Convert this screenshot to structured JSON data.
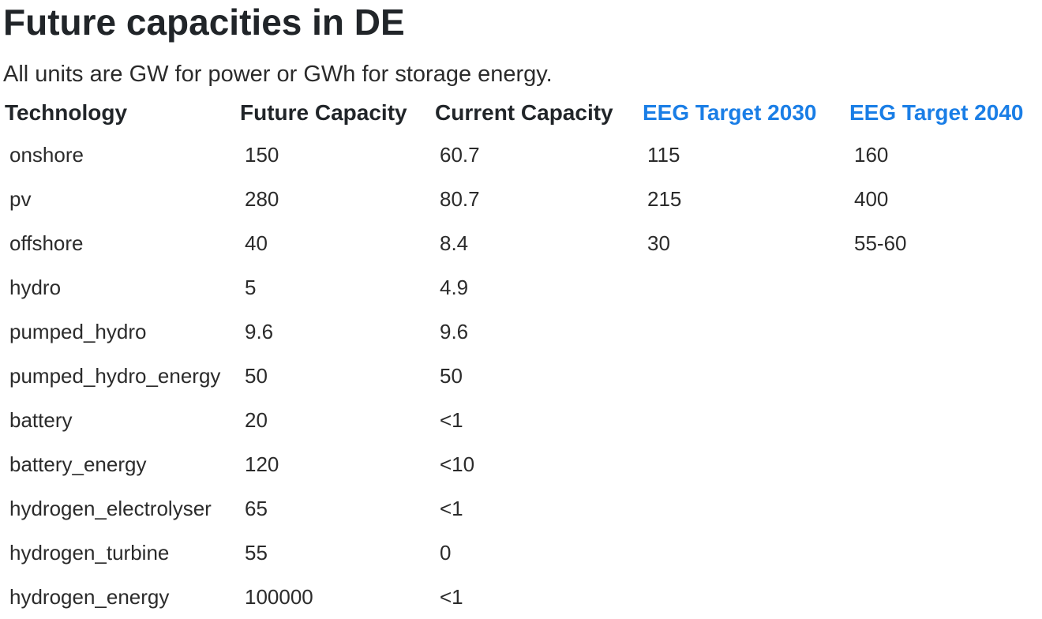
{
  "page": {
    "title": "Future capacities in DE",
    "subtitle": "All units are GW for power or GWh for storage energy."
  },
  "table": {
    "headers": [
      "Technology",
      "Future Capacity",
      "Current Capacity",
      "EEG Target 2030",
      "EEG Target 2040"
    ],
    "header_link_color": "#1a7ee6",
    "rows": [
      [
        "onshore",
        "150",
        "60.7",
        "115",
        "160"
      ],
      [
        "pv",
        "280",
        "80.7",
        "215",
        "400"
      ],
      [
        "offshore",
        "40",
        "8.4",
        "30",
        "55-60"
      ],
      [
        "hydro",
        "5",
        "4.9",
        "",
        ""
      ],
      [
        "pumped_hydro",
        "9.6",
        "9.6",
        "",
        ""
      ],
      [
        "pumped_hydro_energy",
        "50",
        "50",
        "",
        ""
      ],
      [
        "battery",
        "20",
        "<1",
        "",
        ""
      ],
      [
        "battery_energy",
        "120",
        "<10",
        "",
        ""
      ],
      [
        "hydrogen_electrolyser",
        "65",
        "<1",
        "",
        ""
      ],
      [
        "hydrogen_turbine",
        "55",
        "0",
        "",
        ""
      ],
      [
        "hydrogen_energy",
        "100000",
        "<1",
        "",
        ""
      ]
    ]
  }
}
